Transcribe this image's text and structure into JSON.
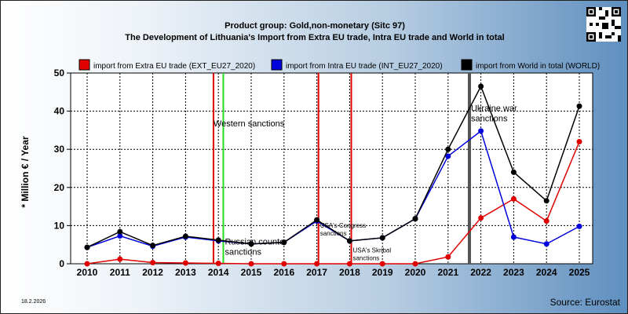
{
  "header": {
    "line1": "Product group: Gold,non-monetary (Sitc 97)",
    "line2": "The Development of Lithuania's Import from Extra EU trade, Intra EU trade and World in total"
  },
  "footer": {
    "date": "18.2.2026",
    "source": "Source: Eurostat"
  },
  "chart_data": {
    "type": "line",
    "title": "The Development of Lithuania's Import from Extra EU trade, Intra EU trade and World in total",
    "subtitle": "Product group: Gold,non-monetary (Sitc 97)",
    "xlabel": "",
    "ylabel": "* Million € / Year",
    "ylim": [
      0,
      50
    ],
    "yticks": [
      0,
      10,
      20,
      30,
      40,
      50
    ],
    "grid": true,
    "legend_position": "top",
    "x": [
      "2010",
      "2011",
      "2012",
      "2013",
      "2014",
      "2015",
      "2016",
      "2017",
      "2018",
      "2019",
      "2020",
      "2021",
      "2022",
      "2023",
      "2024",
      "2025"
    ],
    "series": [
      {
        "name": "import from Extra EU trade (EXT_EU27_2020)",
        "color": "#e00000",
        "values": [
          0,
          1.2,
          0.3,
          0.2,
          0.1,
          0,
          0,
          0,
          0,
          0,
          0,
          1.8,
          12,
          17,
          11.2,
          32
        ]
      },
      {
        "name": "import from Intra EU trade (INT_EU27_2020)",
        "color": "#0000dd",
        "values": [
          4.3,
          7.3,
          4.6,
          7.0,
          6.0,
          5.2,
          5.6,
          11.2,
          6.0,
          6.8,
          11.8,
          28.2,
          34.8,
          7.0,
          5.2,
          9.8
        ]
      },
      {
        "name": "import from World in total (WORLD)",
        "color": "#000000",
        "values": [
          4.3,
          8.4,
          4.8,
          7.2,
          6.2,
          5.2,
          5.6,
          11.5,
          6.0,
          6.8,
          11.8,
          30.0,
          46.5,
          24.0,
          16.5,
          41.3
        ]
      }
    ],
    "annotations": [
      {
        "text": "Western sanctions",
        "x": 2013.85,
        "line_color": "#e00000",
        "text_y": 36
      },
      {
        "text": "",
        "x": 2014.15,
        "line_color": "#22dd22"
      },
      {
        "text": "Russian counter sanctions",
        "x": 2014.15,
        "text_y": 5
      },
      {
        "text": "USA's Congress sanctions",
        "x": 2017.05,
        "line_color": "#e00000",
        "text_y": 9.5
      },
      {
        "text": "USA's Skribal sanctions",
        "x": 2018.05,
        "line_color": "#e00000",
        "text_y": 3
      },
      {
        "text": "Ukraine war sanctions",
        "x": 2021.65,
        "line_color": "#555555",
        "text_y": 40
      }
    ]
  }
}
